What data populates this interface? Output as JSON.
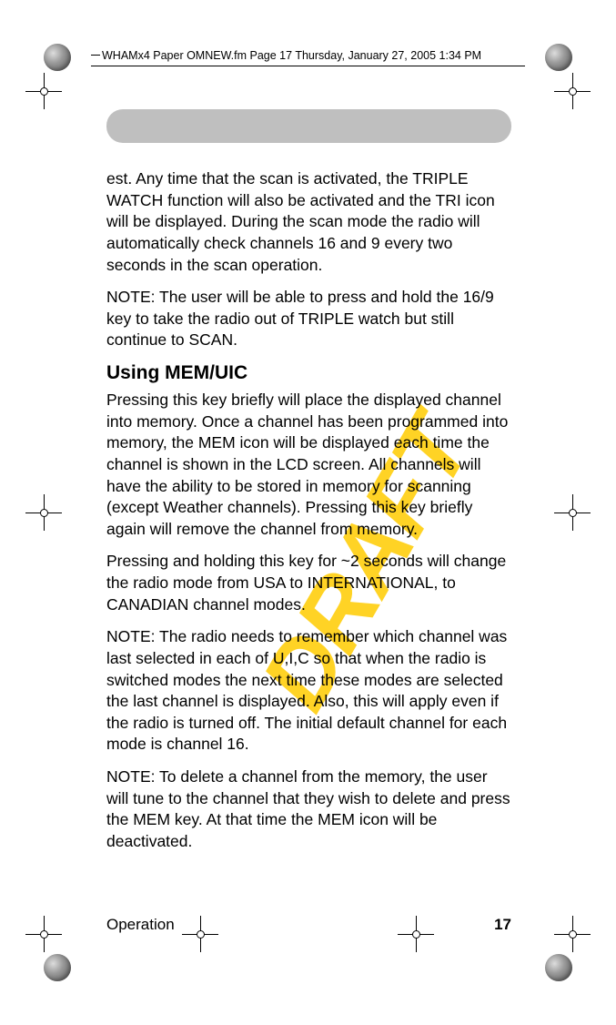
{
  "header": {
    "running_head": "WHAMx4 Paper OMNEW.fm  Page 17  Thursday, January 27, 2005   1:34 PM"
  },
  "watermark": {
    "text": "DRAFT",
    "color": "#ffcc00",
    "fontsize": 105,
    "rotation_deg": -60
  },
  "body": {
    "para1": "est. Any time that the scan is activated, the TRIPLE WATCH function will also be activated and the TRI icon will be displayed.  During the scan mode the radio will automatically check channels 16 and 9 every two seconds in the scan operation.",
    "para2": "NOTE:  The user will be able to press and hold the 16/9 key to take the radio out of TRIPLE watch but still continue to SCAN.",
    "heading1": "Using MEM/UIC",
    "para3": "Pressing this key briefly will place the displayed channel into memory.  Once a channel has been programmed into memory, the MEM icon will be displayed each time the channel is shown in the LCD screen.  All channels will have the ability to be stored in memory for scanning (except Weather channels). Pressing this key briefly again will remove the channel from memory.",
    "para4": "Pressing and holding this key for ~2 seconds will change the radio mode from USA to INTERNATIONAL, to CANADIAN channel modes.",
    "para5": "NOTE: The radio needs to remember which channel was last selected in each of U,I,C so that when the radio is switched modes the next time these modes are selected the last channel is displayed. Also, this will apply even if the radio is turned off. The initial default channel for each mode is channel 16.",
    "para6": "NOTE:  To delete a channel from the memory, the user will tune to the channel that they wish to delete and press the MEM key.  At that time the MEM icon will be deactivated."
  },
  "footer": {
    "section": "Operation",
    "page_number": "17"
  },
  "style": {
    "body_fontsize": 17.5,
    "heading_fontsize": 21,
    "header_bar_color": "#bfbfbf",
    "background_color": "#ffffff",
    "text_color": "#000000"
  }
}
